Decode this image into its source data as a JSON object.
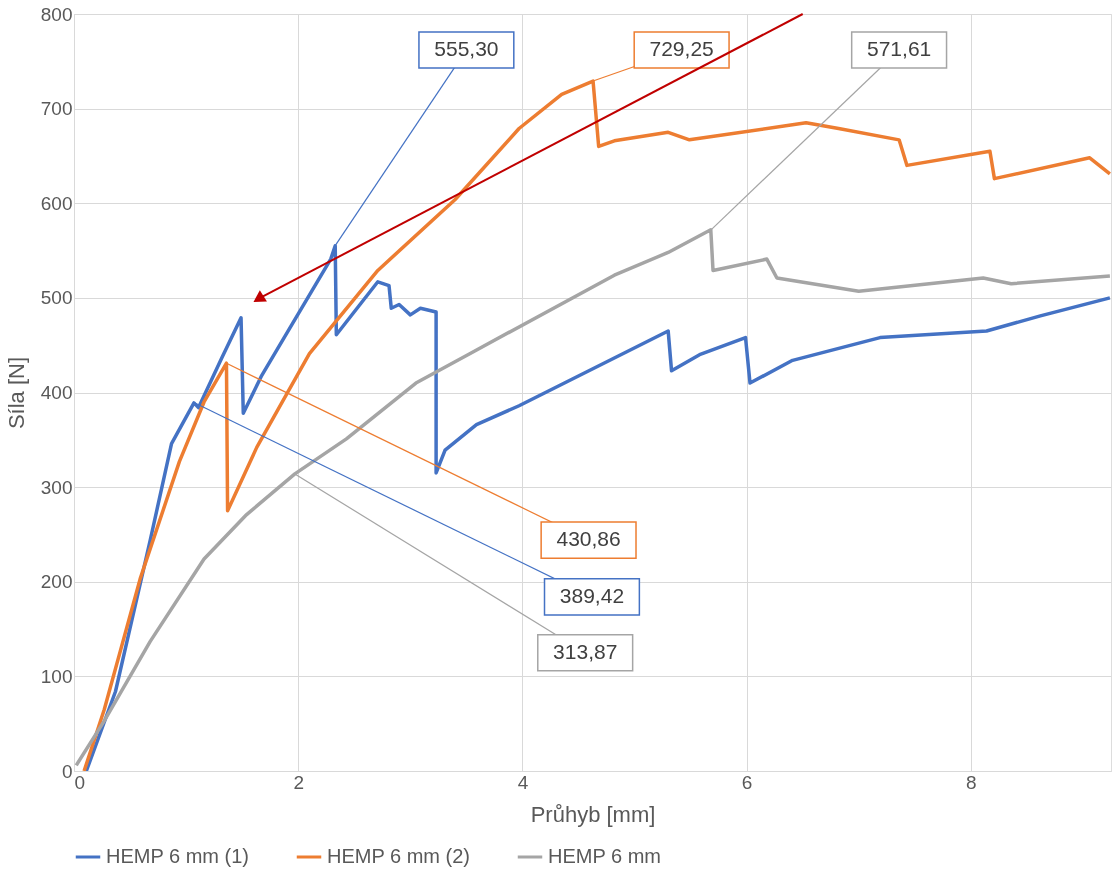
{
  "chart_data": {
    "type": "line",
    "xlabel": "Průhyb [mm]",
    "ylabel": "Síla [N]",
    "xlim": [
      0,
      9.25
    ],
    "xticks": [
      0,
      2,
      4,
      6,
      8
    ],
    "ylim": [
      0,
      800
    ],
    "yticks": [
      0,
      100,
      200,
      300,
      400,
      500,
      600,
      700,
      800
    ],
    "grid": true,
    "legend": "bottom",
    "marker": "none",
    "line_style": "solid",
    "series": [
      {
        "name": "HEMP 6 mm (1)",
        "color": "#4472c4",
        "x": [
          0.11,
          0.37,
          0.68,
          0.87,
          1.07,
          1.11,
          1.32,
          1.49,
          1.51,
          1.67,
          1.95,
          2.29,
          2.33,
          2.34,
          2.71,
          2.81,
          2.83,
          2.9,
          3.0,
          3.09,
          3.23,
          3.23,
          3.31,
          3.59,
          3.97,
          5.3,
          5.33,
          5.58,
          5.99,
          6.03,
          6.41,
          7.19,
          8.14,
          8.62,
          9.24
        ],
        "values": [
          0,
          84,
          244,
          346,
          389,
          384,
          437,
          479,
          378,
          417,
          473,
          541,
          555,
          461,
          517,
          513,
          489,
          493,
          482,
          489,
          485,
          315,
          339,
          366,
          386,
          465,
          423,
          440,
          458,
          410,
          434,
          458,
          465,
          481,
          500
        ]
      },
      {
        "name": "HEMP 6 mm (2)",
        "color": "#ed7d31",
        "x": [
          0.09,
          0.27,
          0.59,
          0.94,
          1.16,
          1.36,
          1.37,
          1.63,
          2.1,
          2.71,
          3.4,
          3.97,
          4.35,
          4.63,
          4.68,
          4.82,
          5.3,
          5.49,
          6.53,
          6.82,
          7.36,
          7.43,
          8.17,
          8.21,
          9.06,
          9.24
        ],
        "values": [
          0,
          65,
          203,
          327,
          390,
          431,
          275,
          342,
          441,
          529,
          604,
          679,
          715,
          729,
          660,
          666,
          675,
          667,
          685,
          679,
          667,
          640,
          655,
          626,
          648,
          631
        ]
      },
      {
        "name": "HEMP 6 mm",
        "color": "#a5a5a5",
        "x": [
          0.02,
          0.27,
          0.68,
          1.16,
          1.54,
          1.97,
          2.43,
          3.05,
          3.53,
          4.82,
          5.3,
          5.68,
          5.7,
          6.18,
          6.27,
          7.0,
          8.11,
          8.36,
          9.24
        ],
        "values": [
          6,
          53,
          137,
          224,
          271,
          314,
          351,
          410,
          441,
          524,
          548,
          572,
          529,
          541,
          521,
          507,
          521,
          515,
          523
        ]
      }
    ],
    "annotations": [
      {
        "text": "555,30",
        "x": 2.33,
        "y": 555.3
      },
      {
        "text": "729,25",
        "x": 4.63,
        "y": 729.25
      },
      {
        "text": "571,61",
        "x": 5.68,
        "y": 571.61
      },
      {
        "text": "430,86",
        "x": 1.36,
        "y": 430.86
      },
      {
        "text": "389,42",
        "x": 1.07,
        "y": 389.42
      },
      {
        "text": "313,87",
        "x": 1.97,
        "y": 313.87
      }
    ]
  }
}
